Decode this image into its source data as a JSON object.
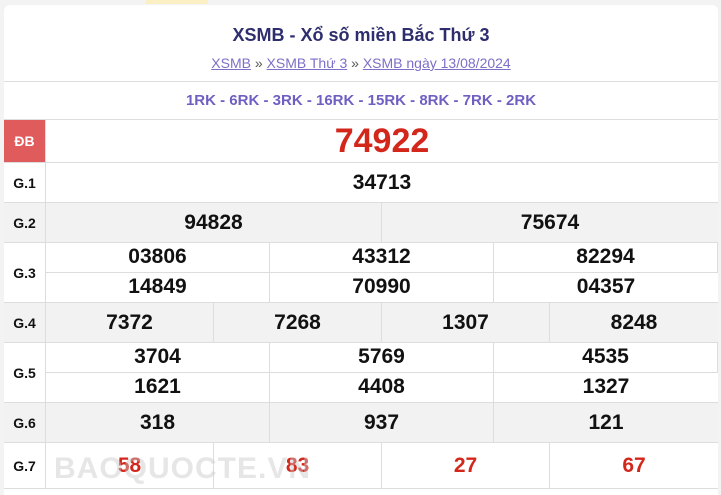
{
  "title": "XSMB - Xổ số miền Bắc Thứ 3",
  "breadcrumb": [
    {
      "label": "XSMB"
    },
    {
      "label": "XSMB Thứ 3"
    },
    {
      "label": "XSMB ngày 13/08/2024"
    }
  ],
  "breadcrumb_sep": "»",
  "rk": "1RK - 6RK - 3RK - 16RK - 15RK - 8RK - 7RK - 2RK",
  "prizes": {
    "db": {
      "label": "ĐB",
      "values": [
        "74922"
      ]
    },
    "g1": {
      "label": "G.1",
      "values": [
        "34713"
      ]
    },
    "g2": {
      "label": "G.2",
      "values": [
        "94828",
        "75674"
      ]
    },
    "g3": {
      "label": "G.3",
      "values": [
        "03806",
        "43312",
        "82294",
        "14849",
        "70990",
        "04357"
      ]
    },
    "g4": {
      "label": "G.4",
      "values": [
        "7372",
        "7268",
        "1307",
        "8248"
      ]
    },
    "g5": {
      "label": "G.5",
      "values": [
        "3704",
        "5769",
        "4535",
        "1621",
        "4408",
        "1327"
      ]
    },
    "g6": {
      "label": "G.6",
      "values": [
        "318",
        "937",
        "121"
      ]
    },
    "g7": {
      "label": "G.7",
      "values": [
        "58",
        "83",
        "27",
        "67"
      ]
    }
  },
  "watermark": "BAOQUOCTE.VN",
  "colors": {
    "accent": "#d3271c",
    "db_label_bg": "#e05b5b",
    "link": "#7c6fc8",
    "title": "#2e2e6e"
  }
}
